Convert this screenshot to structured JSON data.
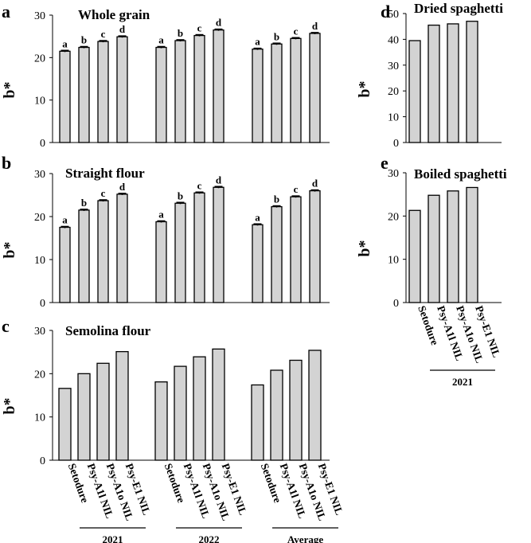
{
  "figure": {
    "panels": [
      "a",
      "b",
      "c",
      "d",
      "e"
    ],
    "bar_color": "#d3d3d3"
  },
  "chart_data": [
    {
      "id": "a",
      "type": "bar",
      "title": "Whole grain",
      "ylabel": "b*",
      "ylim": [
        0,
        30
      ],
      "yticks": [
        0,
        10,
        20,
        30
      ],
      "categories": [
        "Setodure",
        "Psy-A1l NIL",
        "Psy-A1o NIL",
        "Psy-E1 NIL"
      ],
      "groups": [
        "2021",
        "2022",
        "Average"
      ],
      "show_category_labels": false,
      "show_group_labels": false,
      "error_bars": true,
      "series": [
        {
          "name": "2021",
          "values": [
            21.5,
            22.4,
            23.8,
            24.9
          ],
          "letters": [
            "a",
            "b",
            "c",
            "d"
          ]
        },
        {
          "name": "2022",
          "values": [
            22.4,
            24.0,
            25.2,
            26.5
          ],
          "letters": [
            "a",
            "b",
            "c",
            "d"
          ]
        },
        {
          "name": "Average",
          "values": [
            22.0,
            23.2,
            24.5,
            25.7
          ],
          "letters": [
            "a",
            "b",
            "c",
            "d"
          ]
        }
      ]
    },
    {
      "id": "b",
      "type": "bar",
      "title": "Straight flour",
      "ylabel": "b*",
      "ylim": [
        0,
        30
      ],
      "yticks": [
        0,
        10,
        20,
        30
      ],
      "categories": [
        "Setodure",
        "Psy-A1l NIL",
        "Psy-A1o NIL",
        "Psy-E1 NIL"
      ],
      "groups": [
        "2021",
        "2022",
        "Average"
      ],
      "show_category_labels": false,
      "show_group_labels": false,
      "error_bars": true,
      "series": [
        {
          "name": "2021",
          "values": [
            17.5,
            21.5,
            23.7,
            25.2
          ],
          "letters": [
            "a",
            "b",
            "c",
            "d"
          ]
        },
        {
          "name": "2022",
          "values": [
            18.8,
            23.1,
            25.5,
            26.8
          ],
          "letters": [
            "a",
            "b",
            "c",
            "d"
          ]
        },
        {
          "name": "Average",
          "values": [
            18.1,
            22.3,
            24.6,
            26.0
          ],
          "letters": [
            "a",
            "b",
            "c",
            "d"
          ]
        }
      ]
    },
    {
      "id": "c",
      "type": "bar",
      "title": "Semolina flour",
      "ylabel": "b*",
      "ylim": [
        0,
        30
      ],
      "yticks": [
        0,
        10,
        20,
        30
      ],
      "categories": [
        "Setodure",
        "Psy-A1l NIL",
        "Psy-A1o NIL",
        "Psy-E1 NIL"
      ],
      "groups": [
        "2021",
        "2022",
        "Average"
      ],
      "show_category_labels": true,
      "show_group_labels": true,
      "error_bars": false,
      "series": [
        {
          "name": "2021",
          "values": [
            16.6,
            20.0,
            22.4,
            25.1
          ]
        },
        {
          "name": "2022",
          "values": [
            18.1,
            21.7,
            23.9,
            25.7
          ]
        },
        {
          "name": "Average",
          "values": [
            17.4,
            20.8,
            23.1,
            25.4
          ]
        }
      ]
    },
    {
      "id": "d",
      "type": "bar",
      "title": "Dried spaghetti",
      "ylabel": "b*",
      "ylim": [
        0,
        50
      ],
      "yticks": [
        0,
        10,
        20,
        30,
        40,
        50
      ],
      "categories": [
        "Setodure",
        "Psy-A1l NIL",
        "Psy-A1o NIL",
        "Psy-E1 NIL"
      ],
      "groups": [
        "2021"
      ],
      "show_category_labels": false,
      "show_group_labels": false,
      "error_bars": false,
      "series": [
        {
          "name": "2021",
          "values": [
            39.5,
            45.5,
            46.0,
            47.0
          ]
        }
      ]
    },
    {
      "id": "e",
      "type": "bar",
      "title": "Boiled spaghetti",
      "ylabel": "b*",
      "ylim": [
        0,
        30
      ],
      "yticks": [
        0,
        10,
        20,
        30
      ],
      "categories": [
        "Setodure",
        "Psy-A1l NIL",
        "Psy-A1o NIL",
        "Psy-E1 NIL"
      ],
      "groups": [
        "2021"
      ],
      "show_category_labels": true,
      "show_group_labels": true,
      "error_bars": false,
      "series": [
        {
          "name": "2021",
          "values": [
            21.3,
            24.8,
            25.8,
            26.6
          ]
        }
      ]
    }
  ]
}
